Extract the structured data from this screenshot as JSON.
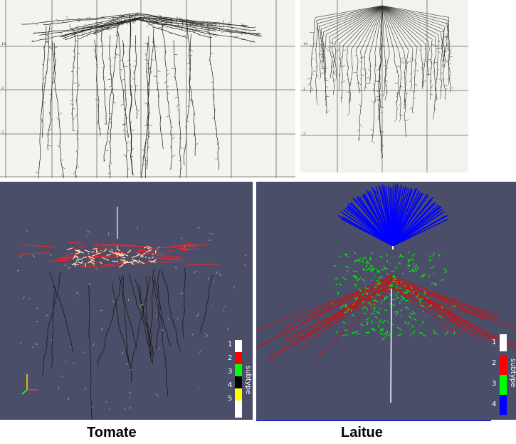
{
  "captions": {
    "left": "Tomate",
    "right": "Laitue"
  },
  "sketch_left": {
    "depth_labels": [
      "10",
      "2",
      "3"
    ]
  },
  "sketch_right": {
    "depth_labels": [
      "10",
      "2",
      "3"
    ]
  },
  "sim_left": {
    "legend_title": "subtype",
    "legend": [
      {
        "label": "1",
        "color": "#ffffff"
      },
      {
        "label": "2",
        "color": "#ff0000"
      },
      {
        "label": "3",
        "color": "#00ff00"
      },
      {
        "label": "4",
        "color": "#000000"
      },
      {
        "label": "5",
        "color": "#ffff00"
      }
    ]
  },
  "sim_right": {
    "legend_title": "subtype",
    "legend": [
      {
        "label": "1",
        "color": "#ffffff"
      },
      {
        "label": "2",
        "color": "#ff0000"
      },
      {
        "label": "3",
        "color": "#00ff00"
      },
      {
        "label": "4",
        "color": "#0000ff"
      }
    ]
  }
}
